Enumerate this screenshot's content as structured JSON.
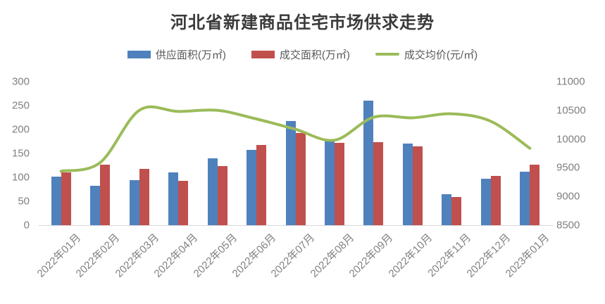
{
  "title": "河北省新建商品住宅市场供求走势",
  "legend": [
    {
      "label": "供应面积(万㎡)",
      "color": "#4F81BD",
      "marker": "bar"
    },
    {
      "label": "成交面积(万㎡)",
      "color": "#C0504D",
      "marker": "bar"
    },
    {
      "label": "成交均价(元/㎡)",
      "color": "#9BBB59",
      "marker": "line"
    }
  ],
  "colors": {
    "supply_bar": "#4F81BD",
    "sold_bar": "#C0504D",
    "price_line": "#9BBB59",
    "axis_text": "#808080",
    "legend_text": "#595959",
    "title_text": "#3a3a3a",
    "axis_line": "#d9d9d9"
  },
  "chart_data": {
    "type": "combo-bar-line",
    "categories": [
      "2022年01月",
      "2022年02月",
      "2022年03月",
      "2022年04月",
      "2022年05月",
      "2022年06月",
      "2022年07月",
      "2022年08月",
      "2022年09月",
      "2022年10月",
      "2022年11月",
      "2022年12月",
      "2023年01月"
    ],
    "series": [
      {
        "name": "供应面积(万㎡)",
        "type": "bar",
        "axis": "left",
        "color": "#4F81BD",
        "values": [
          102,
          82,
          94,
          111,
          140,
          158,
          218,
          176,
          260,
          171,
          65,
          97,
          112
        ]
      },
      {
        "name": "成交面积(万㎡)",
        "type": "bar",
        "axis": "left",
        "color": "#C0504D",
        "values": [
          110,
          127,
          117,
          92,
          123,
          167,
          192,
          172,
          174,
          165,
          59,
          103,
          126
        ]
      },
      {
        "name": "成交均价(元/㎡)",
        "type": "line",
        "axis": "right",
        "color": "#9BBB59",
        "smooth": true,
        "values": [
          9440,
          9590,
          10500,
          10480,
          10500,
          10350,
          10170,
          9980,
          10380,
          10370,
          10440,
          10310,
          9840
        ]
      }
    ],
    "left_axis": {
      "range": [
        0,
        300
      ],
      "ticks": [
        0,
        50,
        100,
        150,
        200,
        250,
        300
      ]
    },
    "right_axis": {
      "range": [
        8500,
        11000
      ],
      "ticks": [
        8500,
        9000,
        9500,
        10000,
        10500,
        11000
      ]
    },
    "grid": false,
    "legend_position": "top",
    "x_label_rotation_deg": -45
  }
}
